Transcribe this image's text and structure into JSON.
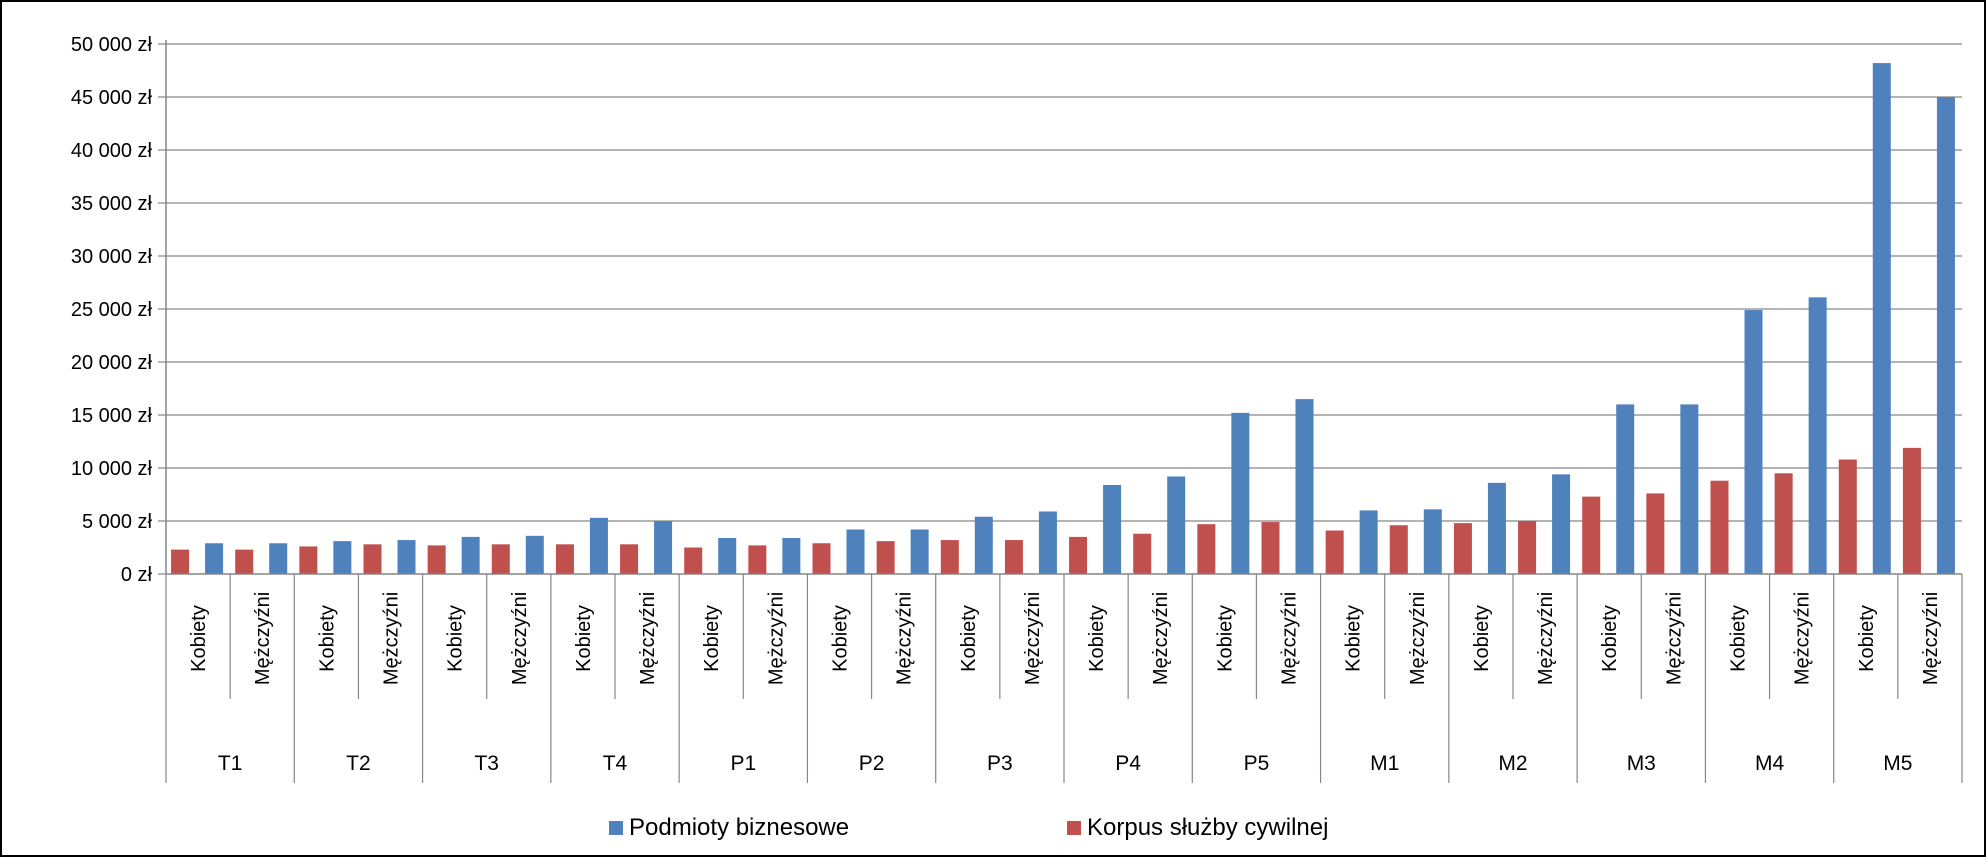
{
  "chart_data": {
    "type": "bar",
    "title": "",
    "xlabel": "",
    "ylabel": "",
    "ylim": [
      0,
      50000
    ],
    "y_ticks": [
      0,
      5000,
      10000,
      15000,
      20000,
      25000,
      30000,
      35000,
      40000,
      45000,
      50000
    ],
    "y_tick_labels": [
      "0 zł",
      "5 000 zł",
      "10 000 zł",
      "15 000 zł",
      "20 000 zł",
      "25 000 zł",
      "30 000 zł",
      "35 000 zł",
      "40 000 zł",
      "45 000 zł",
      "50 000 zł"
    ],
    "grid": true,
    "legend_position": "bottom",
    "groups": [
      "T1",
      "T2",
      "T3",
      "T4",
      "P1",
      "P2",
      "P3",
      "P4",
      "P5",
      "M1",
      "M2",
      "M3",
      "M4",
      "M5"
    ],
    "subcategories": [
      "Kobiety",
      "Mężczyźni"
    ],
    "series": [
      {
        "name": "Podmioty biznesowe",
        "color": "#4f81bd",
        "values": [
          2900,
          2900,
          3100,
          3200,
          3500,
          3600,
          5300,
          5000,
          3400,
          3400,
          4200,
          4200,
          5400,
          5900,
          8400,
          9200,
          15200,
          16500,
          6000,
          6100,
          8600,
          9400,
          16000,
          16000,
          24900,
          26100,
          48200,
          45000
        ]
      },
      {
        "name": "Korpus służby cywilnej",
        "color": "#c0504d",
        "values": [
          2300,
          2300,
          2600,
          2800,
          2700,
          2800,
          2800,
          2800,
          2500,
          2700,
          2900,
          3100,
          3200,
          3200,
          3500,
          3800,
          4700,
          4900,
          4100,
          4600,
          4800,
          5000,
          7300,
          7600,
          8800,
          9500,
          10800,
          11900
        ]
      }
    ]
  }
}
